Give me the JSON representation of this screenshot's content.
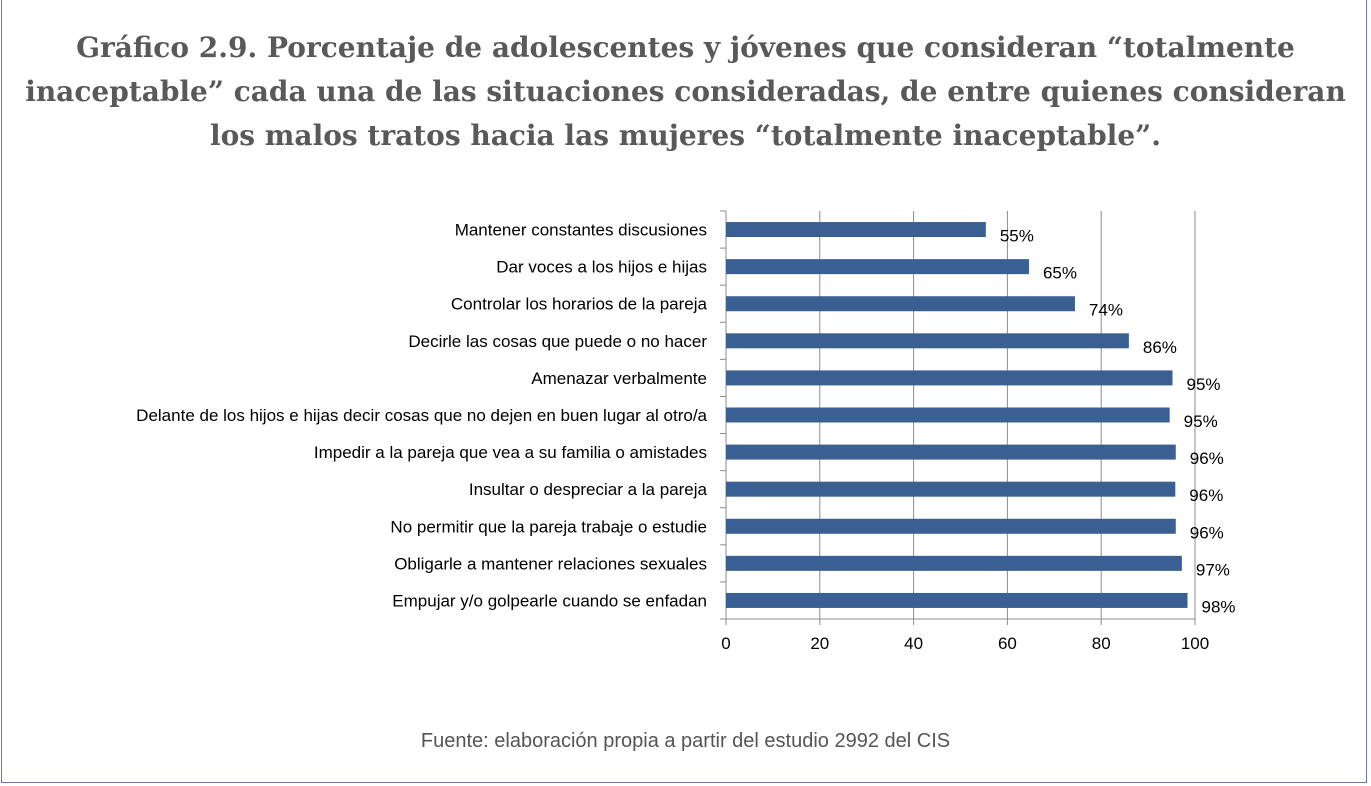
{
  "title": "Gráfico 2.9. Porcentaje de adolescentes y jóvenes que consideran “totalmente inaceptable” cada una de las situaciones consideradas, de entre quienes consideran los malos tratos hacia las mujeres “totalmente inaceptable”.",
  "source": "Fuente: elaboración propia a partir del estudio 2992 del CIS",
  "colors": {
    "bar": "#3A5F93",
    "grid": "#8c8c8c",
    "frame": "#6d7aa6"
  },
  "chart_data": {
    "type": "bar",
    "orientation": "horizontal",
    "categories": [
      "Mantener constantes discusiones",
      "Dar voces a los hijos e hijas",
      "Controlar los horarios de la pareja",
      "Decirle las cosas que puede o no hacer",
      "Amenazar verbalmente",
      "Delante de los hijos e hijas decir cosas que no dejen en buen lugar al otro/a",
      "Impedir a la pareja que vea a su familia o amistades",
      "Insultar o despreciar a la pareja",
      "No permitir que la pareja trabaje o estudie",
      "Obligarle a mantener relaciones sexuales",
      "Empujar y/o golpearle cuando se enfadan"
    ],
    "values": [
      55.4,
      64.6,
      74.4,
      85.9,
      95.2,
      94.6,
      95.9,
      95.8,
      95.9,
      97.2,
      98.4
    ],
    "value_labels": [
      "55%",
      "65%",
      "74%",
      "86%",
      "95%",
      "95%",
      "96%",
      "96%",
      "96%",
      "97%",
      "98%"
    ],
    "xlim": [
      0,
      100
    ],
    "xticks": [
      0,
      20,
      40,
      60,
      80,
      100
    ],
    "xtick_labels": [
      "0",
      "20",
      "40",
      "60",
      "80",
      "100"
    ],
    "xlabel": "",
    "ylabel": "",
    "grid": "vertical",
    "legend": "none"
  }
}
